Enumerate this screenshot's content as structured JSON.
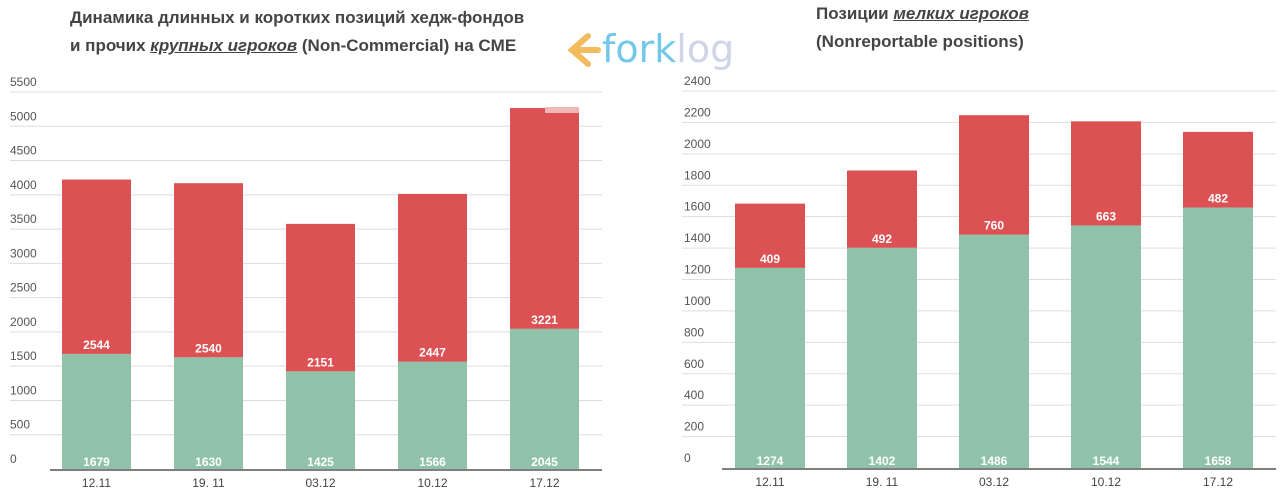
{
  "logo": {
    "text": "forklog",
    "colors": {
      "arrow": "#f0b44c",
      "fork": "#5bbfe6",
      "log": "#c9cde6"
    }
  },
  "colors": {
    "long": "#8fc2a8",
    "short": "#dc5153",
    "grid": "#dddddd",
    "axis": "#555555"
  },
  "chart_data": [
    {
      "type": "bar",
      "stacked": true,
      "title_parts": [
        "Динамика длинных и коротких позиций хедж-фондов",
        "и прочих ",
        "крупных игроков",
        " (Non-Commercial) на CME"
      ],
      "categories": [
        "12.11",
        "19. 11",
        "03.12",
        "10.12",
        "17.12"
      ],
      "series": [
        {
          "values": [
            1679,
            1630,
            1425,
            1566,
            2045
          ],
          "color": "#8fc2a8"
        },
        {
          "values": [
            2544,
            2540,
            2151,
            2447,
            3221
          ],
          "color": "#dc5153"
        }
      ],
      "yticks": [
        "0",
        "500",
        "1000",
        "1500",
        "2000",
        "2500",
        "3000",
        "3500",
        "4000",
        "4500",
        "5000",
        "5500"
      ],
      "ylim": [
        0,
        5500
      ],
      "grid": true
    },
    {
      "type": "bar",
      "stacked": true,
      "title_parts": [
        "Позиции ",
        "мелких игроков",
        "(Nonreportable positions)"
      ],
      "categories": [
        "12.11",
        "19. 11",
        "03.12",
        "10.12",
        "17.12"
      ],
      "series": [
        {
          "values": [
            1274,
            1402,
            1486,
            1544,
            1658
          ],
          "color": "#8fc2a8"
        },
        {
          "values": [
            409,
            492,
            760,
            663,
            482
          ],
          "color": "#dc5153"
        }
      ],
      "yticks": [
        "0",
        "200",
        "400",
        "600",
        "800",
        "1000",
        "1200",
        "1400",
        "1600",
        "1800",
        "2000",
        "2200",
        "2400"
      ],
      "ylim": [
        0,
        2400
      ],
      "grid": true
    }
  ]
}
